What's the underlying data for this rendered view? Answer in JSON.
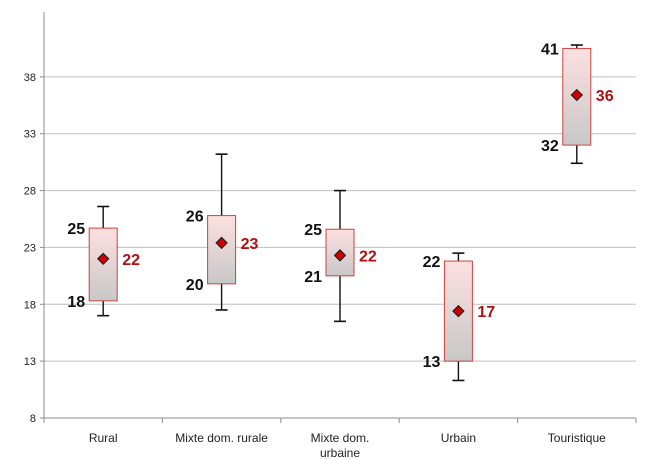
{
  "chart_data": {
    "type": "boxplot",
    "title": "",
    "xlabel": "",
    "ylabel": "",
    "ylim": [
      8,
      43
    ],
    "yticks": [
      8,
      13,
      18,
      23,
      28,
      33,
      38
    ],
    "grid": true,
    "legend": "none",
    "colors": {
      "box_fill_top": "#fde0e0",
      "box_fill_bottom": "#c8c8c8",
      "box_border": "#d04040",
      "whisker": "#111111",
      "marker": "#cc0000",
      "mean_label": "#b01010",
      "gridline": "#bfbfbf"
    },
    "categories": [
      "Rural",
      "Mixte dom. rurale",
      "Mixte dom. urbaine",
      "Urbain",
      "Touristique"
    ],
    "boxes": [
      {
        "min": 17,
        "q1": 18.3,
        "q3": 24.7,
        "max": 26.6,
        "mean": 22,
        "q1_label": "18",
        "q3_label": "25",
        "mean_label": "22"
      },
      {
        "min": 17.5,
        "q1": 19.8,
        "q3": 25.8,
        "max": 31.2,
        "mean": 23.4,
        "q1_label": "20",
        "q3_label": "26",
        "mean_label": "23"
      },
      {
        "min": 16.5,
        "q1": 20.5,
        "q3": 24.6,
        "max": 28,
        "mean": 22.3,
        "q1_label": "21",
        "q3_label": "25",
        "mean_label": "22"
      },
      {
        "min": 11.3,
        "q1": 13,
        "q3": 21.8,
        "max": 22.5,
        "mean": 17.4,
        "q1_label": "13",
        "q3_label": "22",
        "mean_label": "17"
      },
      {
        "min": 30.4,
        "q1": 32,
        "q3": 40.5,
        "max": 40.8,
        "mean": 36.4,
        "q1_label": "32",
        "q3_label": "41",
        "mean_label": "36"
      }
    ]
  }
}
